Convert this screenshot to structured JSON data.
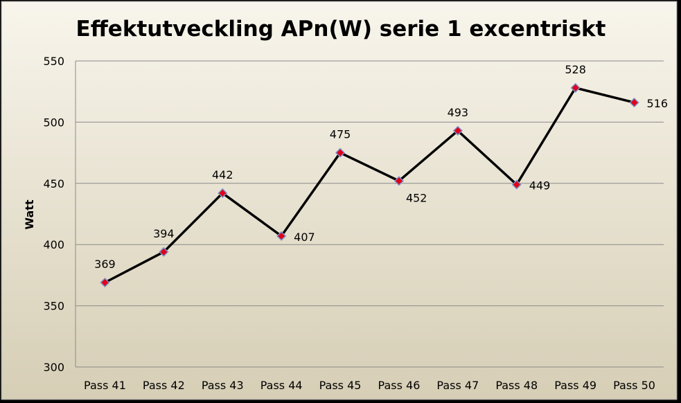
{
  "chart_data": {
    "type": "line",
    "title": "Effektutveckling APn(W) serie 1 excentriskt",
    "xlabel": "",
    "ylabel": "Watt",
    "categories": [
      "Pass 41",
      "Pass 42",
      "Pass 43",
      "Pass 44",
      "Pass 45",
      "Pass 46",
      "Pass 47",
      "Pass 48",
      "Pass 49",
      "Pass 50"
    ],
    "series": [
      {
        "values": [
          369,
          394,
          442,
          407,
          475,
          452,
          493,
          449,
          528,
          516
        ]
      }
    ],
    "ylim": [
      300,
      550
    ],
    "yticks": [
      300,
      350,
      400,
      450,
      500,
      550
    ],
    "grid": true,
    "legend": "none",
    "colors": {
      "background": "#000000",
      "plot_area_top": "#f8f5ec",
      "plot_area_bottom": "#d6ceb5",
      "line": "#000000",
      "marker_fill": "#e0001a",
      "marker_stroke": "#7d8fc4",
      "gridline": "#8a8a8a"
    }
  }
}
